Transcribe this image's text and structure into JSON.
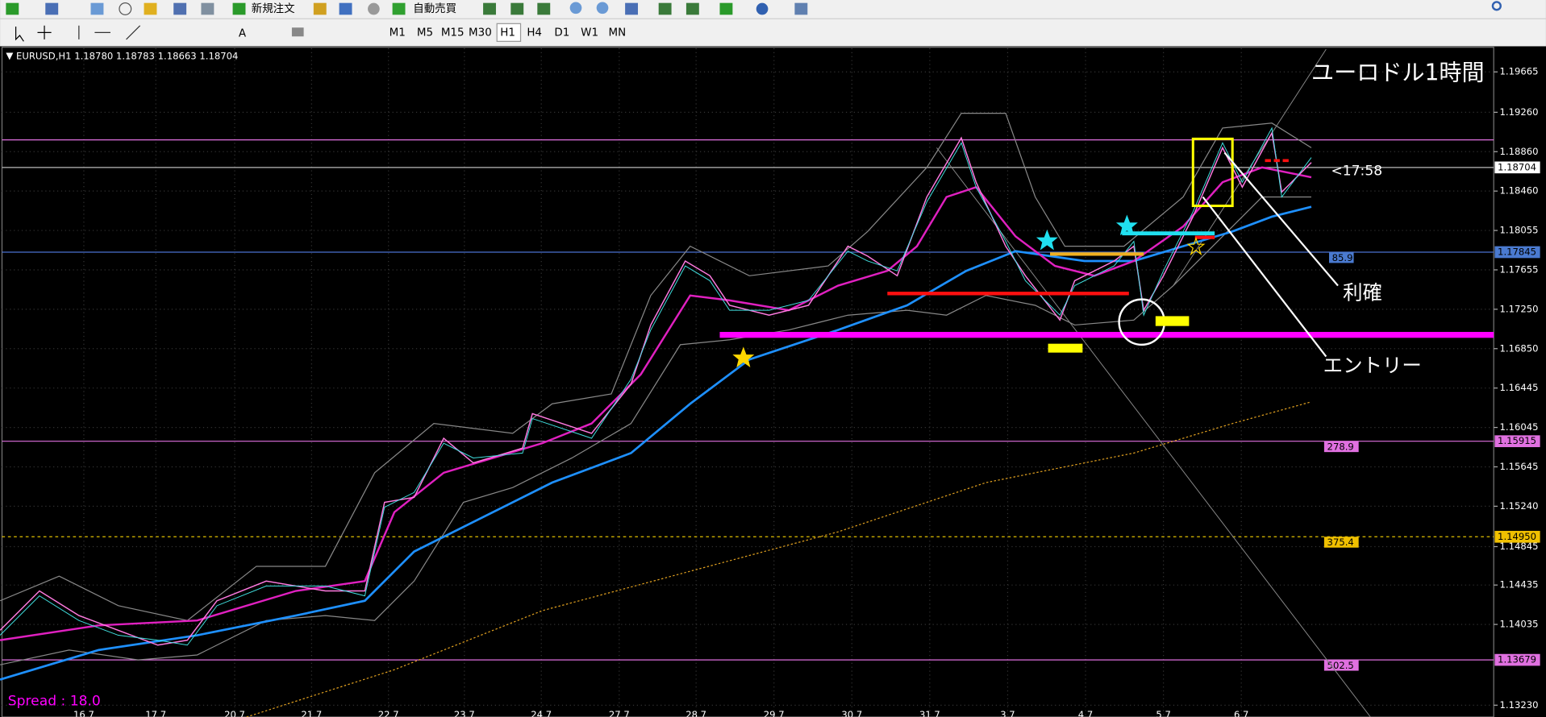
{
  "toolbar": {
    "buttons": [
      "新規注文",
      "自動売買"
    ],
    "timeframes": [
      "M1",
      "M5",
      "M15",
      "M30",
      "H1",
      "H4",
      "D1",
      "W1",
      "MN"
    ]
  },
  "chart_header": {
    "symbol": "EURUSD,H1",
    "open": "1.18780",
    "high": "1.18783",
    "low": "1.18663",
    "close": "1.18704"
  },
  "price_axis": [
    "1.19665",
    "1.19260",
    "1.18860",
    "1.18460",
    "1.18055",
    "1.17655",
    "1.17250",
    "1.16850",
    "1.16445",
    "1.16045",
    "1.15645",
    "1.15240",
    "1.14845",
    "1.14435",
    "1.14035",
    "1.13230"
  ],
  "price_levels": [
    {
      "price": "1.18704"
    },
    {
      "price": "1.17845",
      "distance": "85.9"
    },
    {
      "price": "1.15915",
      "distance": "278.9"
    },
    {
      "price": "1.14950",
      "distance": "375.4"
    },
    {
      "price": "1.13679",
      "distance": "502.5"
    }
  ],
  "time_axis": [
    "16 7",
    "17 7",
    "20 7",
    "21 7",
    "22 7",
    "23 7",
    "24 7",
    "27 7",
    "28 7",
    "29 7",
    "30 7",
    "31 7",
    "3 7",
    "4 7",
    "5 7",
    "6 7"
  ],
  "annotations": {
    "title": "ユーロドル1時間",
    "take_profit": "利確",
    "entry": "エントリー",
    "timer": "<17:58",
    "spread": "Spread : 18.0"
  }
}
